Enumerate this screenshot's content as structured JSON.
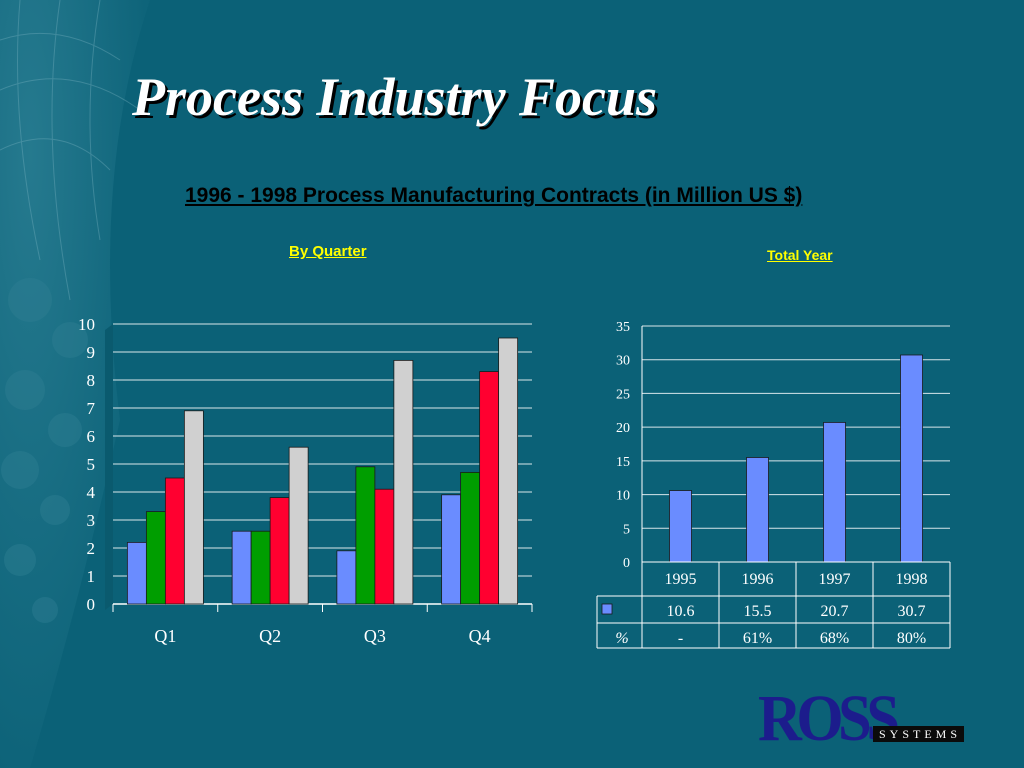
{
  "slide": {
    "title": "Process Industry Focus",
    "subtitle": "1996 - 1998 Process Manufacturing Contracts (in Million US $)"
  },
  "logo": {
    "main": "ROSS",
    "sub": "SYSTEMS"
  },
  "colors": {
    "background": "#0b6177",
    "blue": "#6a8cff",
    "green": "#009e00",
    "red": "#ff0030",
    "gray": "#d0d0d0",
    "label_yellow": "#ffff00"
  },
  "chart_data": [
    {
      "type": "bar",
      "title": "By Quarter",
      "categories": [
        "Q1",
        "Q2",
        "Q3",
        "Q4"
      ],
      "series": [
        {
          "values": [
            2.2,
            2.6,
            1.9,
            3.9
          ],
          "color": "#6a8cff"
        },
        {
          "values": [
            3.3,
            2.6,
            4.9,
            4.7
          ],
          "color": "#009e00"
        },
        {
          "values": [
            4.5,
            3.8,
            4.1,
            8.3
          ],
          "color": "#ff0030"
        },
        {
          "values": [
            6.9,
            5.6,
            8.7,
            9.5
          ],
          "color": "#d0d0d0"
        }
      ],
      "ylim": [
        0,
        10
      ],
      "yticks": [
        "0",
        "1",
        "2",
        "3",
        "4",
        "5",
        "6",
        "7",
        "8",
        "9",
        "10"
      ],
      "grid": true
    },
    {
      "type": "bar",
      "title": "Total Year",
      "categories": [
        "1995",
        "1996",
        "1997",
        "1998"
      ],
      "values": [
        10.6,
        15.5,
        20.7,
        30.7
      ],
      "value_labels": [
        "10.6",
        "15.5",
        "20.7",
        "30.7"
      ],
      "percent_label": "%",
      "percents": [
        "-",
        "61%",
        "68%",
        "80%"
      ],
      "color": "#6a8cff",
      "ylim": [
        0,
        35
      ],
      "yticks": [
        "0",
        "5",
        "10",
        "15",
        "20",
        "25",
        "30",
        "35"
      ],
      "grid": true,
      "data_table": true
    }
  ]
}
